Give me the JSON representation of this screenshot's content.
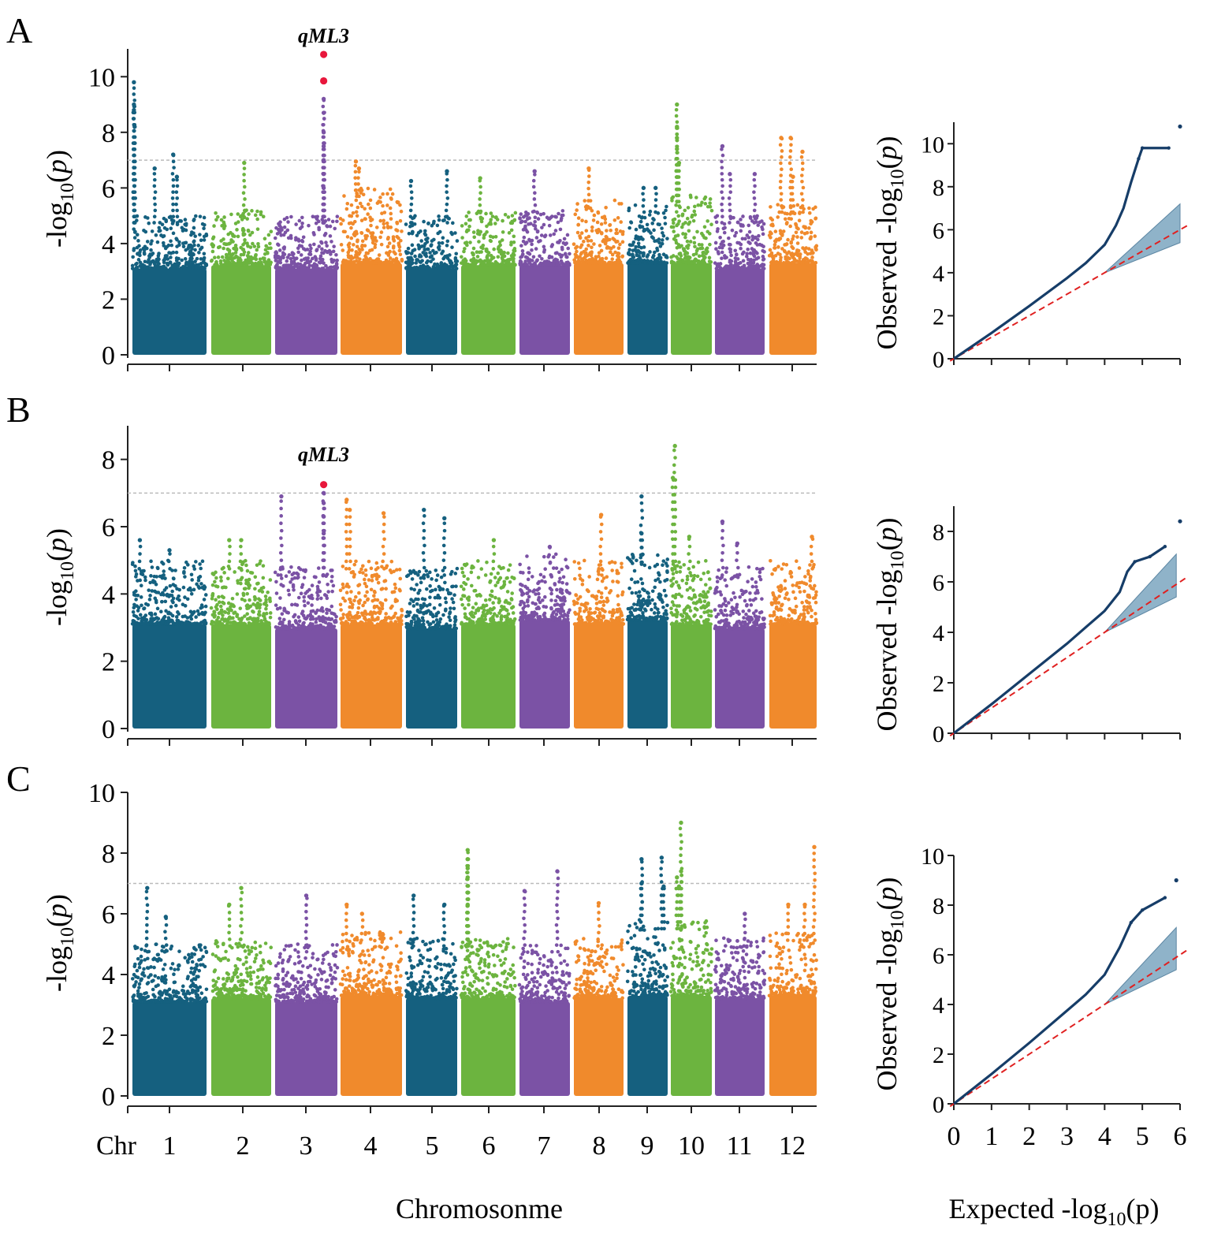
{
  "figure": {
    "xlabel_manhattan": "Chromosonme",
    "xlabel_qq": "Expected -log10(p)",
    "ylabel_manhattan": "-log10(p)",
    "ylabel_qq": "Observed -log10(p)",
    "chr_prefix": "Chr",
    "colors": {
      "chr_cycle": [
        "#15607f",
        "#6cb43f",
        "#7b52a5",
        "#f08a2c"
      ],
      "highlight": "#e8173c",
      "qq_points": "#163d68",
      "qq_band": "#8fb3c9",
      "diagonal": "#e02020",
      "threshold": "#bbbbbb"
    }
  },
  "chart_data": [
    {
      "panel": "A",
      "type": "scatter",
      "subtype": "manhattan",
      "title": "",
      "xlabel": "Chromosonme",
      "ylabel": "-log10(p)",
      "ylim": [
        0,
        11
      ],
      "yticks": [
        0,
        2,
        4,
        6,
        8,
        10
      ],
      "threshold": 7,
      "highlight_label": "qML3",
      "chromosomes": [
        {
          "chr": "1",
          "base": 5.0,
          "peaks": [
            [
              0.02,
              9.8
            ],
            [
              0.02,
              9.0
            ],
            [
              0.02,
              8.8
            ],
            [
              0.03,
              8.2
            ],
            [
              0.3,
              6.7
            ],
            [
              0.55,
              7.2
            ],
            [
              0.6,
              6.4
            ]
          ]
        },
        {
          "chr": "2",
          "base": 5.2,
          "peaks": [
            [
              0.55,
              6.9
            ]
          ]
        },
        {
          "chr": "3",
          "base": 5.0,
          "peaks": [
            [
              0.78,
              10.8,
              "hl"
            ],
            [
              0.78,
              9.85,
              "hl"
            ],
            [
              0.78,
              9.2
            ],
            [
              0.78,
              8.7
            ],
            [
              0.78,
              8.0
            ],
            [
              0.78,
              7.5
            ],
            [
              0.78,
              7.0
            ],
            [
              0.78,
              6.5
            ],
            [
              0.78,
              6.0
            ]
          ]
        },
        {
          "chr": "4",
          "base": 6.0,
          "peaks": [
            [
              0.25,
              6.95
            ],
            [
              0.3,
              6.7
            ]
          ]
        },
        {
          "chr": "5",
          "base": 5.0,
          "peaks": [
            [
              0.1,
              6.25
            ],
            [
              0.8,
              6.6
            ]
          ]
        },
        {
          "chr": "6",
          "base": 5.2,
          "peaks": [
            [
              0.35,
              6.35
            ]
          ]
        },
        {
          "chr": "7",
          "base": 5.2,
          "peaks": [
            [
              0.3,
              6.6
            ]
          ]
        },
        {
          "chr": "8",
          "base": 5.6,
          "peaks": [
            [
              0.3,
              6.7
            ]
          ]
        },
        {
          "chr": "9",
          "base": 5.4,
          "peaks": [
            [
              0.4,
              6.0
            ],
            [
              0.7,
              6.0
            ]
          ]
        },
        {
          "chr": "10",
          "base": 5.8,
          "peaks": [
            [
              0.15,
              9.0
            ],
            [
              0.15,
              8.2
            ],
            [
              0.15,
              7.8
            ],
            [
              0.15,
              7.4
            ],
            [
              0.2,
              6.9
            ]
          ]
        },
        {
          "chr": "11",
          "base": 5.0,
          "peaks": [
            [
              0.15,
              7.5
            ],
            [
              0.3,
              6.5
            ],
            [
              0.8,
              6.5
            ]
          ]
        },
        {
          "chr": "12",
          "base": 5.4,
          "peaks": [
            [
              0.25,
              7.8
            ],
            [
              0.45,
              7.8
            ],
            [
              0.7,
              7.3
            ],
            [
              0.5,
              6.4
            ]
          ]
        }
      ]
    },
    {
      "panel": "B",
      "type": "scatter",
      "subtype": "manhattan",
      "title": "",
      "xlabel": "Chromosonme",
      "ylabel": "-log10(p)",
      "ylim": [
        0,
        9
      ],
      "yticks": [
        0,
        2,
        4,
        6,
        8
      ],
      "threshold": 7,
      "highlight_label": "qML3",
      "chromosomes": [
        {
          "chr": "1",
          "base": 5.0,
          "peaks": [
            [
              0.1,
              5.6
            ],
            [
              0.5,
              5.3
            ]
          ]
        },
        {
          "chr": "2",
          "base": 5.0,
          "peaks": [
            [
              0.3,
              5.6
            ],
            [
              0.5,
              5.6
            ]
          ]
        },
        {
          "chr": "3",
          "base": 4.8,
          "peaks": [
            [
              0.1,
              6.9
            ],
            [
              0.78,
              7.25,
              "hl"
            ],
            [
              0.78,
              7.0
            ],
            [
              0.78,
              6.7
            ],
            [
              0.78,
              6.3
            ],
            [
              0.78,
              5.8
            ]
          ]
        },
        {
          "chr": "4",
          "base": 5.0,
          "peaks": [
            [
              0.1,
              6.8
            ],
            [
              0.15,
              6.5
            ],
            [
              0.7,
              6.4
            ]
          ]
        },
        {
          "chr": "5",
          "base": 4.8,
          "peaks": [
            [
              0.35,
              6.5
            ],
            [
              0.75,
              6.25
            ]
          ]
        },
        {
          "chr": "6",
          "base": 5.0,
          "peaks": [
            [
              0.6,
              5.6
            ]
          ]
        },
        {
          "chr": "7",
          "base": 5.2,
          "peaks": [
            [
              0.6,
              5.4
            ]
          ]
        },
        {
          "chr": "8",
          "base": 5.0,
          "peaks": [
            [
              0.55,
              6.35
            ]
          ]
        },
        {
          "chr": "9",
          "base": 5.2,
          "peaks": [
            [
              0.35,
              6.9
            ],
            [
              0.35,
              5.8
            ]
          ]
        },
        {
          "chr": "10",
          "base": 5.0,
          "peaks": [
            [
              0.1,
              8.4
            ],
            [
              0.05,
              7.45
            ],
            [
              0.45,
              5.7
            ]
          ]
        },
        {
          "chr": "11",
          "base": 4.8,
          "peaks": [
            [
              0.15,
              6.15
            ],
            [
              0.45,
              5.5
            ]
          ]
        },
        {
          "chr": "12",
          "base": 5.0,
          "peaks": [
            [
              0.9,
              5.7
            ]
          ]
        }
      ]
    },
    {
      "panel": "C",
      "type": "scatter",
      "subtype": "manhattan",
      "title": "",
      "xlabel": "Chromosonme",
      "ylabel": "-log10(p)",
      "ylim": [
        0,
        10
      ],
      "yticks": [
        0,
        2,
        4,
        6,
        8,
        10
      ],
      "threshold": 7,
      "chromosomes": [
        {
          "chr": "1",
          "base": 5.0,
          "peaks": [
            [
              0.2,
              6.85
            ],
            [
              0.45,
              5.9
            ]
          ]
        },
        {
          "chr": "2",
          "base": 5.2,
          "peaks": [
            [
              0.3,
              6.3
            ],
            [
              0.5,
              6.85
            ]
          ]
        },
        {
          "chr": "3",
          "base": 5.0,
          "peaks": [
            [
              0.5,
              6.6
            ]
          ]
        },
        {
          "chr": "4",
          "base": 5.4,
          "peaks": [
            [
              0.1,
              6.3
            ],
            [
              0.35,
              6.0
            ]
          ]
        },
        {
          "chr": "5",
          "base": 5.2,
          "peaks": [
            [
              0.15,
              6.6
            ],
            [
              0.75,
              6.3
            ]
          ]
        },
        {
          "chr": "6",
          "base": 5.2,
          "peaks": [
            [
              0.12,
              8.1
            ],
            [
              0.12,
              7.8
            ],
            [
              0.12,
              7.5
            ],
            [
              0.12,
              7.2
            ],
            [
              0.12,
              6.7
            ],
            [
              0.12,
              6.3
            ]
          ]
        },
        {
          "chr": "7",
          "base": 5.0,
          "peaks": [
            [
              0.1,
              6.75
            ],
            [
              0.75,
              7.4
            ]
          ]
        },
        {
          "chr": "8",
          "base": 5.2,
          "peaks": [
            [
              0.5,
              6.35
            ]
          ]
        },
        {
          "chr": "9",
          "base": 5.8,
          "peaks": [
            [
              0.35,
              7.8
            ],
            [
              0.35,
              7.0
            ],
            [
              0.85,
              7.85
            ],
            [
              0.9,
              6.9
            ]
          ]
        },
        {
          "chr": "10",
          "base": 5.8,
          "peaks": [
            [
              0.25,
              9.0
            ],
            [
              0.25,
              7.4
            ],
            [
              0.15,
              7.2
            ],
            [
              0.2,
              6.9
            ]
          ]
        },
        {
          "chr": "11",
          "base": 5.2,
          "peaks": [
            [
              0.6,
              6.0
            ]
          ]
        },
        {
          "chr": "12",
          "base": 5.4,
          "peaks": [
            [
              0.95,
              8.2
            ],
            [
              0.4,
              6.3
            ],
            [
              0.75,
              6.3
            ]
          ]
        }
      ]
    },
    {
      "panel": "A-QQ",
      "type": "scatter",
      "subtype": "qq",
      "xlabel": "Expected -log10(p)",
      "ylabel": "Observed -log10(p)",
      "xlim": [
        0,
        6
      ],
      "ylim": [
        0,
        11
      ],
      "yticks": [
        0,
        2,
        4,
        6,
        8,
        10
      ],
      "curve": [
        [
          0,
          0
        ],
        [
          1,
          1.2
        ],
        [
          2,
          2.45
        ],
        [
          3,
          3.75
        ],
        [
          3.5,
          4.45
        ],
        [
          4,
          5.3
        ],
        [
          4.3,
          6.2
        ],
        [
          4.5,
          7.0
        ],
        [
          4.7,
          8.2
        ],
        [
          4.9,
          9.3
        ],
        [
          5.0,
          9.8
        ],
        [
          5.7,
          9.8
        ],
        [
          6.0,
          10.8
        ]
      ],
      "band": {
        "x": [
          4.0,
          6.0
        ],
        "lower": [
          4.0,
          5.4
        ],
        "upper": [
          4.0,
          7.2
        ]
      }
    },
    {
      "panel": "B-QQ",
      "type": "scatter",
      "subtype": "qq",
      "xlabel": "Expected -log10(p)",
      "ylabel": "Observed -log10(p)",
      "xlim": [
        0,
        6
      ],
      "ylim": [
        0,
        9
      ],
      "yticks": [
        0,
        2,
        4,
        6,
        8
      ],
      "curve": [
        [
          0,
          0
        ],
        [
          1,
          1.15
        ],
        [
          2,
          2.35
        ],
        [
          3,
          3.55
        ],
        [
          3.5,
          4.2
        ],
        [
          4,
          4.85
        ],
        [
          4.4,
          5.6
        ],
        [
          4.6,
          6.4
        ],
        [
          4.8,
          6.8
        ],
        [
          5.2,
          7.0
        ],
        [
          5.6,
          7.4
        ],
        [
          6.0,
          8.4
        ]
      ],
      "band": {
        "x": [
          4.0,
          5.9
        ],
        "lower": [
          4.0,
          5.4
        ],
        "upper": [
          4.0,
          7.1
        ]
      }
    },
    {
      "panel": "C-QQ",
      "type": "scatter",
      "subtype": "qq",
      "xlabel": "Expected -log10(p)",
      "ylabel": "Observed -log10(p)",
      "xlim": [
        0,
        6
      ],
      "xticks": [
        0,
        1,
        2,
        3,
        4,
        5,
        6
      ],
      "ylim": [
        0,
        10
      ],
      "yticks": [
        0,
        2,
        4,
        6,
        8,
        10
      ],
      "curve": [
        [
          0,
          0
        ],
        [
          1,
          1.2
        ],
        [
          2,
          2.45
        ],
        [
          3,
          3.75
        ],
        [
          3.5,
          4.4
        ],
        [
          4,
          5.2
        ],
        [
          4.4,
          6.3
        ],
        [
          4.7,
          7.3
        ],
        [
          5.0,
          7.8
        ],
        [
          5.6,
          8.3
        ],
        [
          5.9,
          9.0
        ]
      ],
      "band": {
        "x": [
          4.0,
          5.9
        ],
        "lower": [
          4.0,
          5.4
        ],
        "upper": [
          4.0,
          7.1
        ]
      }
    }
  ]
}
